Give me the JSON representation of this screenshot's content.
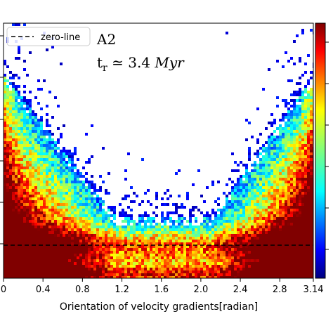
{
  "chart_data": {
    "type": "heatmap",
    "xlabel": "Orientation of velocity gradients[radian]",
    "x_ticks": [
      "0",
      "0.4",
      "0.8",
      "1.2",
      "1.6",
      "2.0",
      "2.4",
      "2.8",
      "3.14"
    ],
    "xlim": [
      0,
      3.14
    ],
    "legend": {
      "entries": [
        {
          "label": "zero-line",
          "style": "dashed",
          "color": "#000000"
        }
      ],
      "placement": "top-left"
    },
    "annotations": {
      "panel": "A2",
      "time_prefix": "t",
      "time_sub": "r",
      "time_op": " ≃ 3.4 ",
      "time_unit": "Myr"
    },
    "zero_line": {
      "style": "dashed"
    },
    "colorbar": {
      "colormap": "jet",
      "placement": "right"
    },
    "grid": false
  }
}
